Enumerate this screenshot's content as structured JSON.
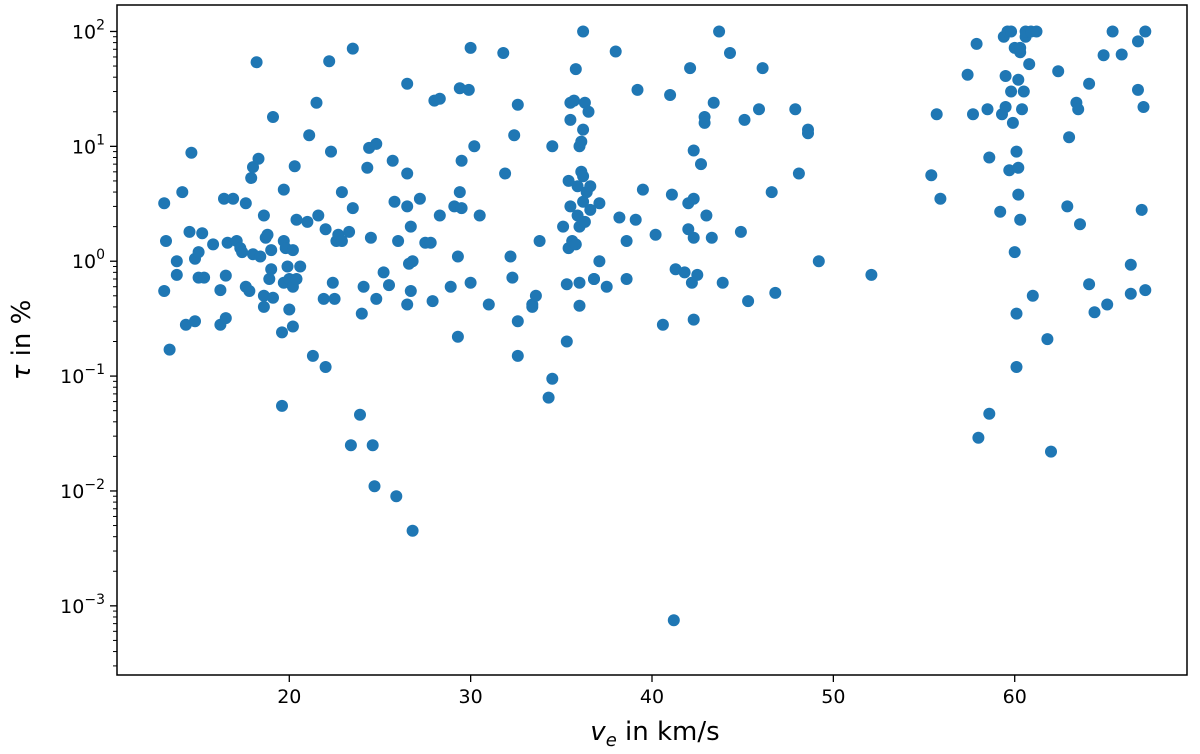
{
  "chart_data": {
    "type": "scatter",
    "xlabel": {
      "symbol": "v",
      "sub": "e",
      "text": " in km/s"
    },
    "ylabel": {
      "symbol": "τ",
      "text": " in %"
    },
    "xlim": [
      10.5,
      69.5
    ],
    "ylim": [
      0.00025,
      170
    ],
    "yscale": "log",
    "grid": false,
    "x_ticks": [
      {
        "value": 20,
        "label": "20"
      },
      {
        "value": 30,
        "label": "30"
      },
      {
        "value": 40,
        "label": "40"
      },
      {
        "value": 50,
        "label": "50"
      },
      {
        "value": 60,
        "label": "60"
      }
    ],
    "y_ticks": [
      {
        "value": 0.001,
        "base": "10",
        "exp": "−3"
      },
      {
        "value": 0.01,
        "base": "10",
        "exp": "−2"
      },
      {
        "value": 0.1,
        "base": "10",
        "exp": "−1"
      },
      {
        "value": 1,
        "base": "10",
        "exp": "0"
      },
      {
        "value": 10,
        "base": "10",
        "exp": "1"
      },
      {
        "value": 100,
        "base": "10",
        "exp": "2"
      }
    ],
    "color": "#1f77b4",
    "points": [
      [
        13.1,
        3.2
      ],
      [
        13.1,
        0.55
      ],
      [
        13.2,
        1.5
      ],
      [
        13.4,
        0.17
      ],
      [
        13.8,
        1.0
      ],
      [
        13.8,
        0.76
      ],
      [
        14.1,
        4.0
      ],
      [
        14.3,
        0.28
      ],
      [
        14.5,
        1.8
      ],
      [
        14.6,
        8.8
      ],
      [
        14.8,
        0.3
      ],
      [
        14.8,
        1.05
      ],
      [
        15.0,
        1.2
      ],
      [
        15.0,
        0.72
      ],
      [
        15.2,
        1.75
      ],
      [
        15.3,
        0.72
      ],
      [
        15.8,
        1.4
      ],
      [
        16.2,
        0.56
      ],
      [
        16.2,
        0.28
      ],
      [
        16.4,
        3.5
      ],
      [
        16.5,
        0.32
      ],
      [
        16.5,
        0.75
      ],
      [
        16.6,
        1.45
      ],
      [
        16.9,
        3.5
      ],
      [
        17.1,
        1.5
      ],
      [
        17.3,
        1.3
      ],
      [
        17.4,
        1.2
      ],
      [
        17.6,
        3.2
      ],
      [
        17.6,
        0.6
      ],
      [
        17.8,
        0.55
      ],
      [
        17.9,
        5.3
      ],
      [
        18.0,
        6.6
      ],
      [
        18.0,
        1.15
      ],
      [
        18.2,
        54
      ],
      [
        18.3,
        7.8
      ],
      [
        18.4,
        1.1
      ],
      [
        18.6,
        0.5
      ],
      [
        18.6,
        2.5
      ],
      [
        18.6,
        0.4
      ],
      [
        18.7,
        1.6
      ],
      [
        18.8,
        1.7
      ],
      [
        18.9,
        0.7
      ],
      [
        19.0,
        1.25
      ],
      [
        19.0,
        0.85
      ],
      [
        19.1,
        0.48
      ],
      [
        19.1,
        18
      ],
      [
        19.6,
        0.24
      ],
      [
        19.6,
        0.055
      ],
      [
        19.7,
        4.2
      ],
      [
        19.7,
        1.5
      ],
      [
        19.7,
        0.65
      ],
      [
        19.8,
        1.3
      ],
      [
        19.9,
        0.9
      ],
      [
        20.0,
        0.7
      ],
      [
        20.0,
        0.38
      ],
      [
        20.2,
        1.25
      ],
      [
        20.2,
        0.6
      ],
      [
        20.2,
        0.27
      ],
      [
        20.3,
        6.7
      ],
      [
        20.4,
        0.7
      ],
      [
        20.4,
        2.3
      ],
      [
        20.6,
        0.9
      ],
      [
        21.0,
        2.2
      ],
      [
        21.1,
        12.5
      ],
      [
        21.3,
        0.15
      ],
      [
        21.5,
        24
      ],
      [
        21.6,
        2.5
      ],
      [
        21.9,
        0.47
      ],
      [
        22.0,
        0.12
      ],
      [
        22.0,
        1.9
      ],
      [
        22.2,
        55
      ],
      [
        22.3,
        9.0
      ],
      [
        22.4,
        0.65
      ],
      [
        22.5,
        0.47
      ],
      [
        22.6,
        1.5
      ],
      [
        22.7,
        1.7
      ],
      [
        22.9,
        4.0
      ],
      [
        22.9,
        1.5
      ],
      [
        23.3,
        1.8
      ],
      [
        23.4,
        0.025
      ],
      [
        23.5,
        71
      ],
      [
        23.5,
        2.9
      ],
      [
        23.9,
        0.046
      ],
      [
        24.0,
        0.35
      ],
      [
        24.1,
        0.6
      ],
      [
        24.3,
        6.5
      ],
      [
        24.4,
        9.7
      ],
      [
        24.5,
        1.6
      ],
      [
        24.6,
        0.025
      ],
      [
        24.7,
        0.011
      ],
      [
        24.8,
        10.5
      ],
      [
        24.8,
        0.47
      ],
      [
        25.2,
        0.8
      ],
      [
        25.5,
        0.62
      ],
      [
        25.7,
        7.5
      ],
      [
        25.8,
        3.3
      ],
      [
        25.9,
        0.009
      ],
      [
        26.0,
        1.5
      ],
      [
        26.5,
        35
      ],
      [
        26.5,
        5.8
      ],
      [
        26.5,
        3.0
      ],
      [
        26.5,
        0.42
      ],
      [
        26.6,
        0.95
      ],
      [
        26.7,
        2.0
      ],
      [
        26.7,
        0.55
      ],
      [
        26.8,
        1.0
      ],
      [
        26.8,
        0.0045
      ],
      [
        27.2,
        3.5
      ],
      [
        27.5,
        1.45
      ],
      [
        27.8,
        1.45
      ],
      [
        27.9,
        0.45
      ],
      [
        28.0,
        25
      ],
      [
        28.3,
        2.5
      ],
      [
        28.3,
        26
      ],
      [
        28.9,
        0.6
      ],
      [
        29.1,
        3.0
      ],
      [
        29.3,
        0.22
      ],
      [
        29.3,
        1.1
      ],
      [
        29.4,
        32
      ],
      [
        29.4,
        4.0
      ],
      [
        29.5,
        7.5
      ],
      [
        29.5,
        2.9
      ],
      [
        29.9,
        31
      ],
      [
        30.0,
        72
      ],
      [
        30.0,
        0.65
      ],
      [
        30.2,
        10
      ],
      [
        30.5,
        2.5
      ],
      [
        31.0,
        0.42
      ],
      [
        31.8,
        65
      ],
      [
        31.9,
        5.8
      ],
      [
        32.2,
        1.1
      ],
      [
        32.3,
        0.72
      ],
      [
        32.4,
        12.5
      ],
      [
        32.6,
        23
      ],
      [
        32.6,
        0.15
      ],
      [
        32.6,
        0.3
      ],
      [
        33.4,
        0.42
      ],
      [
        33.4,
        0.4
      ],
      [
        33.6,
        0.5
      ],
      [
        33.8,
        1.5
      ],
      [
        34.3,
        0.065
      ],
      [
        34.5,
        10
      ],
      [
        34.5,
        0.095
      ],
      [
        35.1,
        2.0
      ],
      [
        35.3,
        0.2
      ],
      [
        35.3,
        0.63
      ],
      [
        35.4,
        1.3
      ],
      [
        35.4,
        5.0
      ],
      [
        35.5,
        24
      ],
      [
        35.5,
        17
      ],
      [
        35.5,
        3.0
      ],
      [
        35.6,
        1.5
      ],
      [
        35.7,
        25
      ],
      [
        35.8,
        47
      ],
      [
        35.8,
        1.4
      ],
      [
        35.9,
        4.5
      ],
      [
        35.9,
        2.5
      ],
      [
        36.0,
        10
      ],
      [
        36.0,
        2.0
      ],
      [
        36.0,
        0.65
      ],
      [
        36.0,
        0.41
      ],
      [
        36.1,
        11
      ],
      [
        36.1,
        6.0
      ],
      [
        36.2,
        100
      ],
      [
        36.2,
        14
      ],
      [
        36.2,
        3.3
      ],
      [
        36.2,
        5.5
      ],
      [
        36.3,
        2.2
      ],
      [
        36.3,
        24
      ],
      [
        36.4,
        4.0
      ],
      [
        36.5,
        20
      ],
      [
        36.6,
        2.8
      ],
      [
        36.6,
        4.5
      ],
      [
        36.8,
        0.7
      ],
      [
        36.8,
        0.7
      ],
      [
        37.1,
        3.2
      ],
      [
        37.1,
        1.0
      ],
      [
        37.5,
        0.6
      ],
      [
        38.0,
        67
      ],
      [
        38.2,
        2.4
      ],
      [
        38.6,
        0.7
      ],
      [
        38.6,
        1.5
      ],
      [
        39.1,
        2.3
      ],
      [
        39.2,
        31
      ],
      [
        39.5,
        4.2
      ],
      [
        40.2,
        1.7
      ],
      [
        40.6,
        0.28
      ],
      [
        41.0,
        28
      ],
      [
        41.1,
        3.8
      ],
      [
        41.2,
        0.00075
      ],
      [
        41.3,
        0.85
      ],
      [
        41.8,
        0.8
      ],
      [
        42.0,
        1.9
      ],
      [
        42.0,
        3.2
      ],
      [
        42.1,
        48
      ],
      [
        42.2,
        0.65
      ],
      [
        42.3,
        9.2
      ],
      [
        42.3,
        3.5
      ],
      [
        42.3,
        1.6
      ],
      [
        42.3,
        0.31
      ],
      [
        42.5,
        0.76
      ],
      [
        42.7,
        7.0
      ],
      [
        42.9,
        18
      ],
      [
        42.9,
        16
      ],
      [
        43.0,
        2.5
      ],
      [
        43.3,
        1.6
      ],
      [
        43.4,
        24
      ],
      [
        43.7,
        100
      ],
      [
        43.9,
        0.65
      ],
      [
        44.3,
        65
      ],
      [
        44.9,
        1.8
      ],
      [
        45.1,
        17
      ],
      [
        45.3,
        0.45
      ],
      [
        45.9,
        21
      ],
      [
        46.1,
        48
      ],
      [
        46.6,
        4.0
      ],
      [
        46.8,
        0.53
      ],
      [
        47.9,
        21
      ],
      [
        48.1,
        5.8
      ],
      [
        48.6,
        14
      ],
      [
        48.6,
        13
      ],
      [
        49.2,
        1.0
      ],
      [
        52.1,
        0.76
      ],
      [
        55.4,
        5.6
      ],
      [
        55.7,
        19
      ],
      [
        55.9,
        3.5
      ],
      [
        57.4,
        42
      ],
      [
        57.7,
        19
      ],
      [
        57.9,
        78
      ],
      [
        58.0,
        0.029
      ],
      [
        58.5,
        21
      ],
      [
        58.6,
        8.0
      ],
      [
        58.6,
        0.047
      ],
      [
        59.2,
        2.7
      ],
      [
        59.3,
        19
      ],
      [
        59.4,
        90
      ],
      [
        59.5,
        22
      ],
      [
        59.5,
        41
      ],
      [
        59.6,
        100
      ],
      [
        59.7,
        6.2
      ],
      [
        59.8,
        100
      ],
      [
        59.8,
        30
      ],
      [
        59.9,
        16
      ],
      [
        60.0,
        1.2
      ],
      [
        60.0,
        72
      ],
      [
        60.1,
        9.0
      ],
      [
        60.1,
        0.12
      ],
      [
        60.1,
        0.35
      ],
      [
        60.2,
        6.5
      ],
      [
        60.2,
        3.8
      ],
      [
        60.2,
        38
      ],
      [
        60.3,
        66
      ],
      [
        60.3,
        72
      ],
      [
        60.3,
        2.3
      ],
      [
        60.4,
        21
      ],
      [
        60.5,
        30
      ],
      [
        60.6,
        90
      ],
      [
        60.6,
        100
      ],
      [
        60.8,
        52
      ],
      [
        60.9,
        100
      ],
      [
        61.0,
        0.5
      ],
      [
        61.2,
        100
      ],
      [
        61.8,
        0.21
      ],
      [
        62.0,
        0.022
      ],
      [
        62.4,
        45
      ],
      [
        62.9,
        3.0
      ],
      [
        63.0,
        12
      ],
      [
        63.4,
        24
      ],
      [
        63.5,
        21
      ],
      [
        63.6,
        2.1
      ],
      [
        64.1,
        35
      ],
      [
        64.1,
        0.63
      ],
      [
        64.4,
        0.36
      ],
      [
        64.9,
        62
      ],
      [
        65.1,
        0.42
      ],
      [
        65.4,
        100
      ],
      [
        65.9,
        63
      ],
      [
        66.4,
        0.52
      ],
      [
        66.4,
        0.93
      ],
      [
        66.8,
        31
      ],
      [
        66.8,
        82
      ],
      [
        67.0,
        2.8
      ],
      [
        67.1,
        22
      ],
      [
        67.2,
        0.56
      ],
      [
        67.2,
        100
      ]
    ]
  }
}
